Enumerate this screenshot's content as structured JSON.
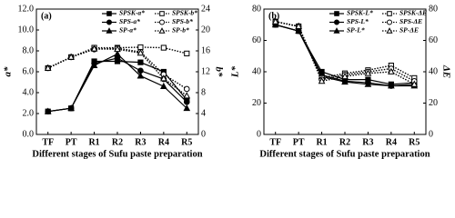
{
  "chart_data": [
    {
      "type": "line",
      "panel_label": "(a)",
      "categories": [
        "TF",
        "PT",
        "R1",
        "R2",
        "R3",
        "R4",
        "R5"
      ],
      "xlabel": "Different stages of Sufu paste preparation",
      "ylabel": "a*",
      "y2label": "b*",
      "ylim": [
        0,
        12
      ],
      "yticks": [
        {
          "value": 0,
          "label": "0.0"
        },
        {
          "value": 2,
          "label": "2.0"
        },
        {
          "value": 4,
          "label": "4.0"
        },
        {
          "value": 6,
          "label": "6.0"
        },
        {
          "value": 8,
          "label": "8.0"
        },
        {
          "value": 10,
          "label": "10.0"
        },
        {
          "value": 12,
          "label": "12.0"
        }
      ],
      "y2lim": [
        0,
        24
      ],
      "y2ticks": [
        0,
        4,
        8,
        12,
        16,
        20,
        24
      ],
      "series": [
        {
          "name": "SPSK-a*",
          "color": "#000000",
          "marker": "square",
          "line_style": "solid",
          "values": [
            2.2,
            2.5,
            7.0,
            7.0,
            6.9,
            6.0,
            3.3
          ]
        },
        {
          "name": "SPS-a*",
          "color": "#000000",
          "marker": "circle",
          "line_style": "solid",
          "values": [
            2.2,
            2.5,
            6.8,
            7.3,
            6.1,
            5.3,
            3.1
          ]
        },
        {
          "name": "SP-a*",
          "color": "#000000",
          "marker": "triangle",
          "line_style": "solid",
          "values": [
            2.2,
            2.5,
            6.6,
            7.7,
            5.6,
            4.6,
            2.5
          ]
        },
        {
          "name": "SPSK-b*",
          "color": "#000000",
          "marker": "square",
          "line_style": "dotted",
          "axis": "y2",
          "values": [
            12.7,
            14.8,
            16.6,
            16.6,
            16.7,
            16.6,
            15.5
          ]
        },
        {
          "name": "SPS-b*",
          "color": "#000000",
          "marker": "circle",
          "line_style": "dotted",
          "axis": "y2",
          "values": [
            12.7,
            14.8,
            16.3,
            16.5,
            15.8,
            11.5,
            8.7
          ]
        },
        {
          "name": "SP-b*",
          "color": "#000000",
          "marker": "triangle",
          "line_style": "dotted",
          "axis": "y2",
          "values": [
            12.7,
            14.8,
            16.4,
            16.3,
            15.6,
            10.7,
            7.4
          ]
        }
      ]
    },
    {
      "type": "line",
      "panel_label": "(b)",
      "categories": [
        "TF",
        "PT",
        "R1",
        "R2",
        "R3",
        "R4",
        "R5"
      ],
      "xlabel": "Different stages of Sufu paste preparation",
      "ylabel": "L*",
      "y2label": "ΔE",
      "ylim": [
        0,
        80
      ],
      "yticks": [
        0,
        20,
        40,
        60,
        80
      ],
      "y2lim": [
        0,
        80
      ],
      "y2ticks": [
        0,
        20,
        40,
        60,
        80
      ],
      "series": [
        {
          "name": "SPSK-L*",
          "color": "#000000",
          "marker": "square",
          "line_style": "solid",
          "values": [
            70,
            66,
            40,
            35,
            35,
            32,
            33
          ]
        },
        {
          "name": "SPS-L*",
          "color": "#000000",
          "marker": "circle",
          "line_style": "solid",
          "values": [
            70,
            66,
            38,
            34,
            33,
            31,
            32
          ]
        },
        {
          "name": "SP-L*",
          "color": "#000000",
          "marker": "triangle",
          "line_style": "solid",
          "values": [
            70,
            66,
            37,
            33.5,
            32,
            31,
            31
          ]
        },
        {
          "name": "SPSK-ΔE",
          "color": "#000000",
          "marker": "square",
          "line_style": "dotted",
          "axis": "y2",
          "values": [
            72,
            69,
            36,
            39,
            41,
            44,
            36
          ]
        },
        {
          "name": "SPS-ΔE",
          "color": "#000000",
          "marker": "circle",
          "line_style": "dotted",
          "axis": "y2",
          "values": [
            72,
            69,
            35,
            38,
            40,
            42,
            34
          ]
        },
        {
          "name": "SP-ΔE",
          "color": "#000000",
          "marker": "triangle",
          "line_style": "dotted",
          "axis": "y2",
          "values": [
            72,
            69,
            34,
            37,
            39,
            40,
            32
          ]
        }
      ]
    }
  ]
}
